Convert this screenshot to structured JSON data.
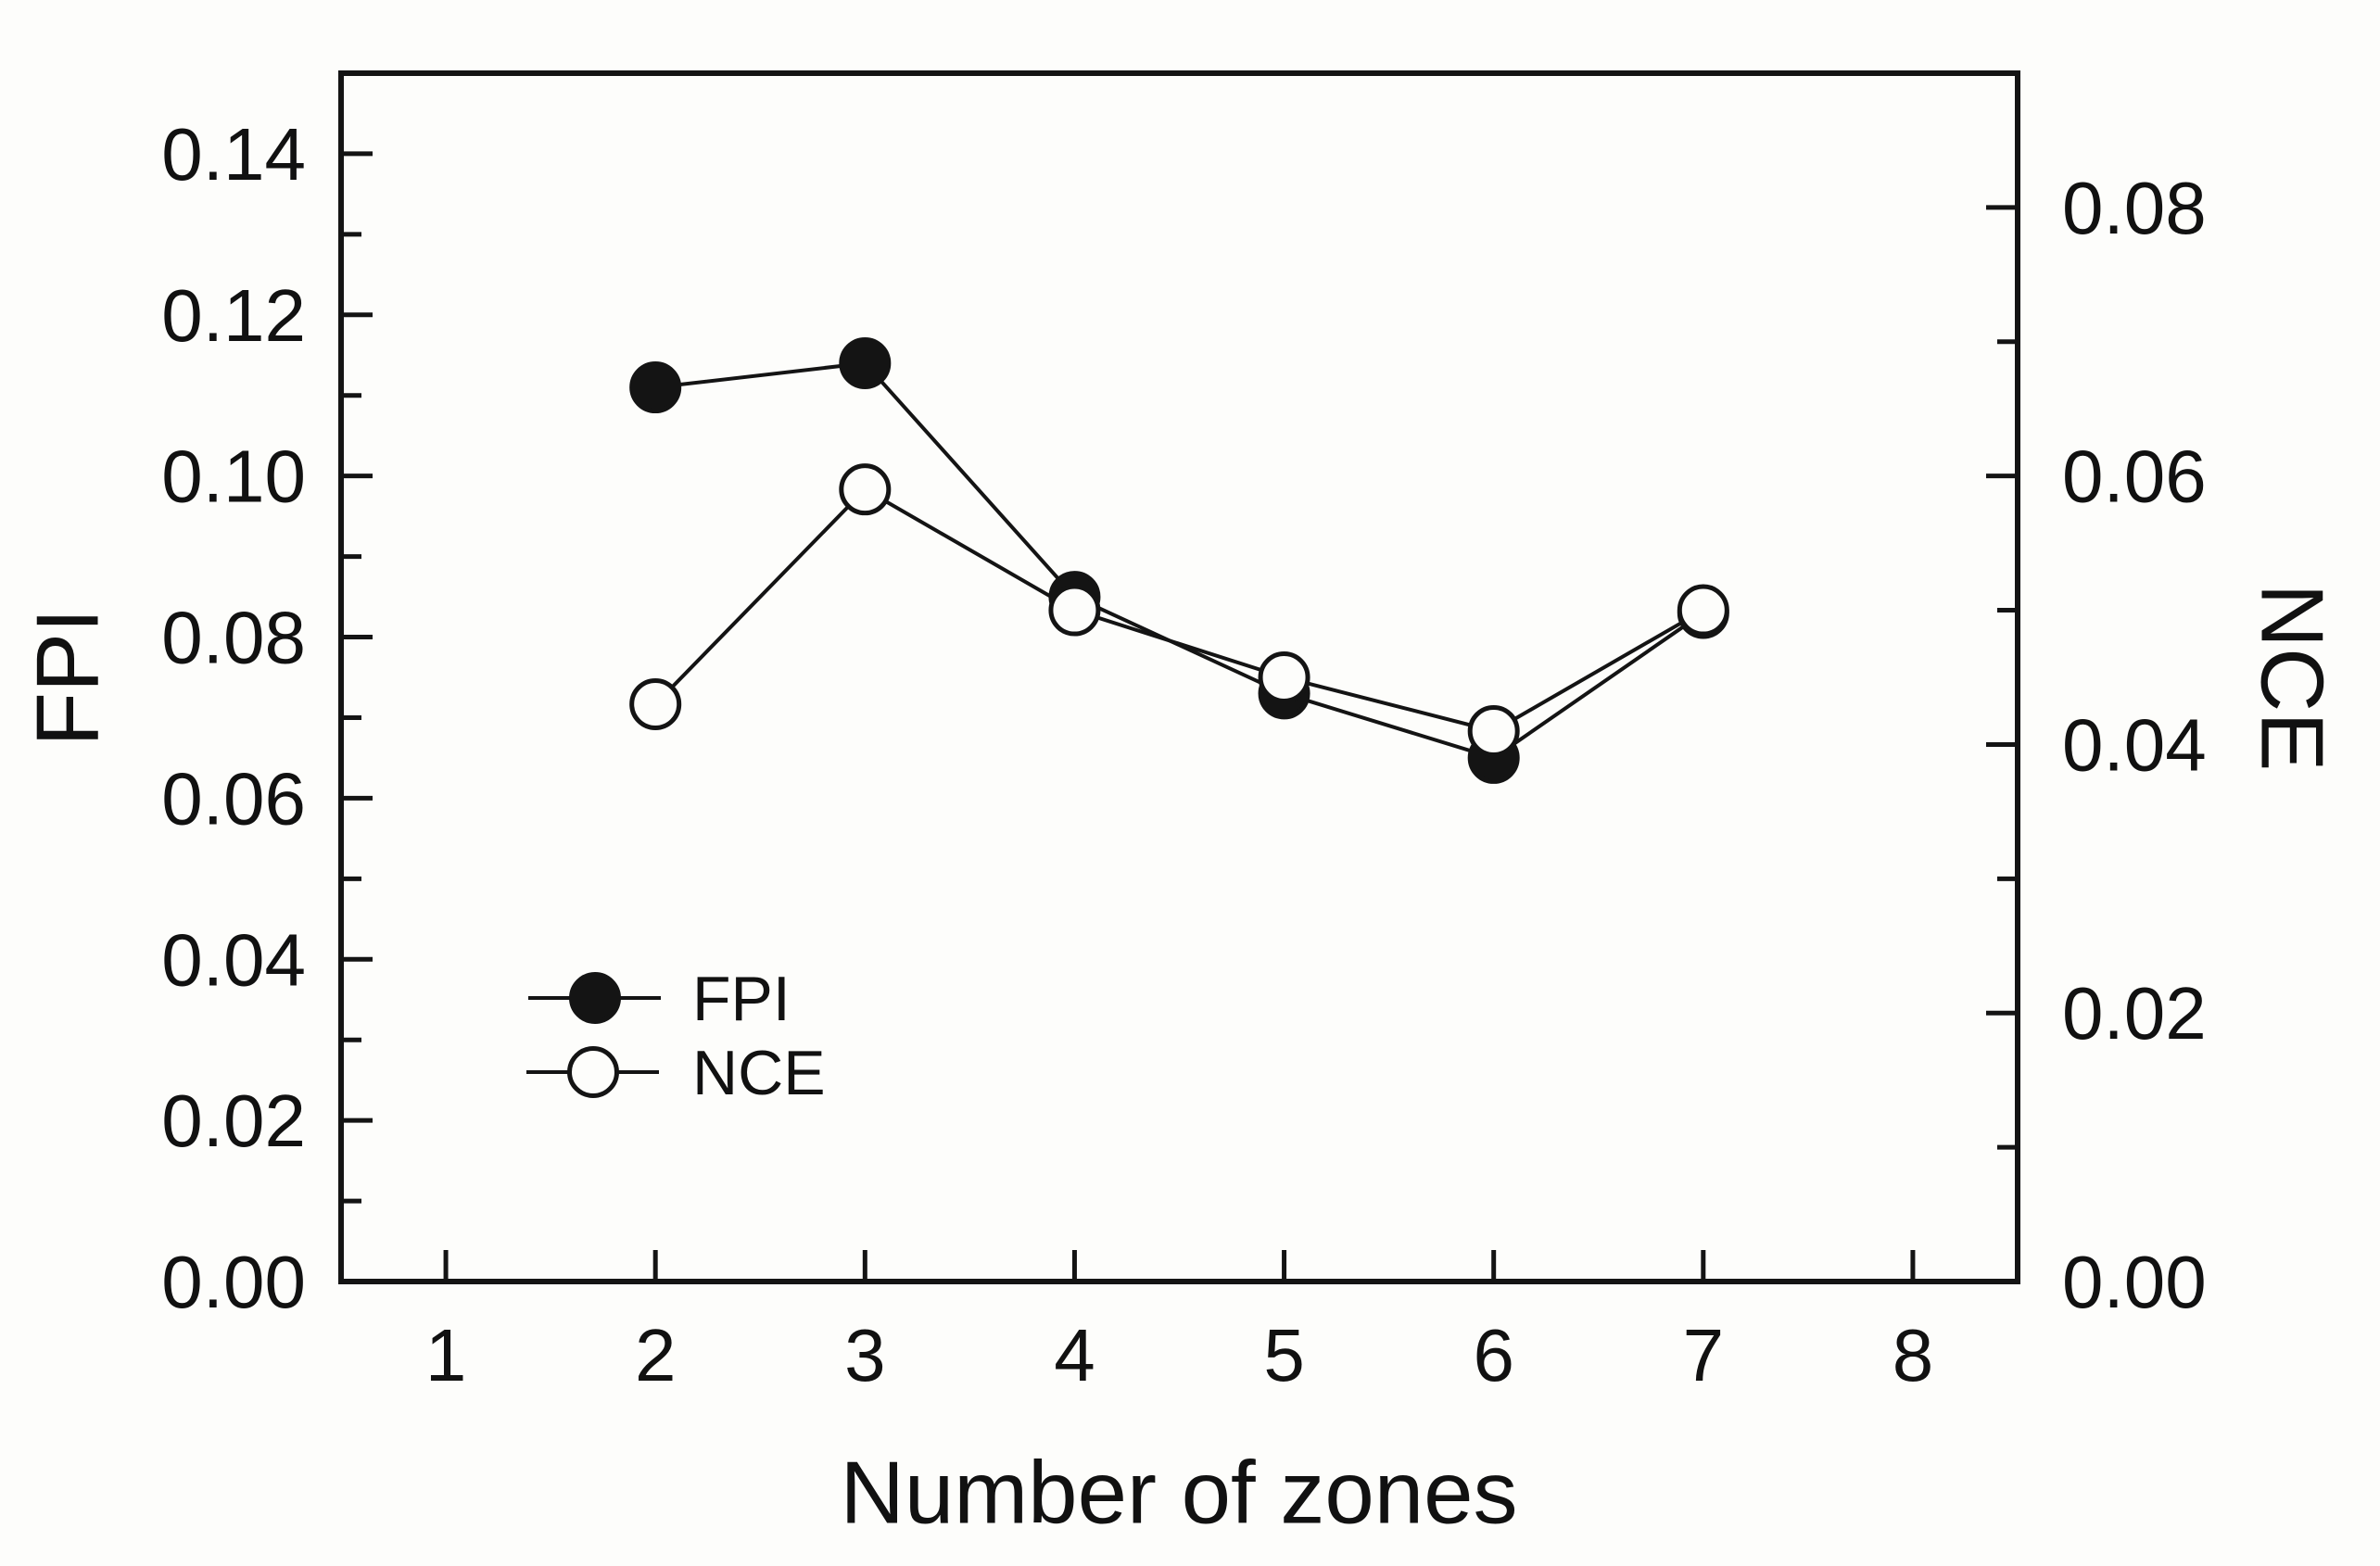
{
  "figure": {
    "background_color": "#fdfdfb",
    "ink_color": "#141414"
  },
  "chart_data": {
    "type": "line",
    "title": "",
    "xlabel": "Number of zones",
    "ylabel_left": "FPI",
    "ylabel_right": "NCE",
    "x": [
      2,
      3,
      4,
      5,
      6,
      7
    ],
    "series": [
      {
        "name": "FPI",
        "axis": "left",
        "marker": "filled-circle",
        "color": "#141414",
        "values": [
          0.111,
          0.114,
          0.085,
          0.073,
          0.065,
          0.083
        ]
      },
      {
        "name": "NCE",
        "axis": "right",
        "marker": "open-circle",
        "color": "#141414",
        "values": [
          0.043,
          0.059,
          0.05,
          0.045,
          0.041,
          0.05
        ]
      }
    ],
    "xlim": [
      0.5,
      8.5
    ],
    "x_ticks": [
      1,
      2,
      3,
      4,
      5,
      6,
      7,
      8
    ],
    "ylim_left": [
      0,
      0.15
    ],
    "y_ticks_left": [
      "0.00",
      "0.02",
      "0.04",
      "0.06",
      "0.08",
      "0.10",
      "0.12",
      "0.14"
    ],
    "y_minor_ticks_left": [
      0.01,
      0.03,
      0.05,
      0.07,
      0.09,
      0.11,
      0.13
    ],
    "ylim_right": [
      0,
      0.09
    ],
    "y_ticks_right": [
      "0.00",
      "0.02",
      "0.04",
      "0.06",
      "0.08"
    ],
    "y_minor_ticks_right": [
      0.01,
      0.03,
      0.05,
      0.07
    ],
    "grid": false,
    "legend_position": "inside-lower-left",
    "legend": [
      {
        "label": "FPI",
        "marker": "filled-circle"
      },
      {
        "label": "NCE",
        "marker": "open-circle"
      }
    ]
  }
}
